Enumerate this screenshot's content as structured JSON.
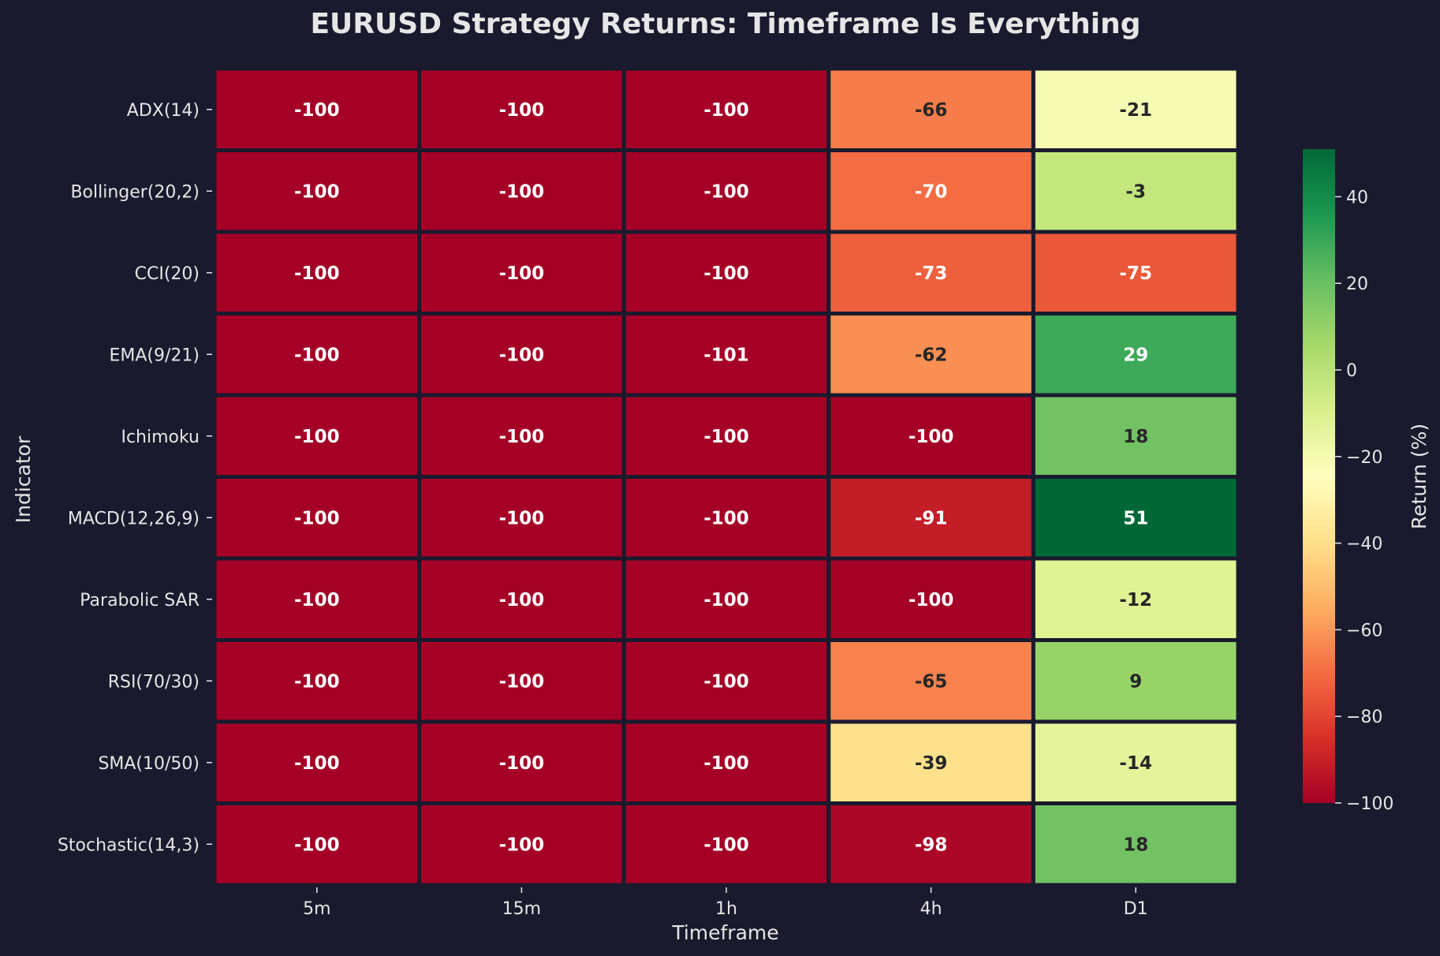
{
  "chart_data": {
    "type": "heatmap",
    "title": "EURUSD Strategy Returns: Timeframe Is Everything",
    "xlabel": "Timeframe",
    "ylabel": "Indicator",
    "x_categories": [
      "5m",
      "15m",
      "1h",
      "4h",
      "D1"
    ],
    "y_categories": [
      "ADX(14)",
      "Bollinger(20,2)",
      "CCI(20)",
      "EMA(9/21)",
      "Ichimoku",
      "MACD(12,26,9)",
      "Parabolic SAR",
      "RSI(70/30)",
      "SMA(10/50)",
      "Stochastic(14,3)"
    ],
    "values": [
      [
        -100,
        -100,
        -100,
        -66,
        -21
      ],
      [
        -100,
        -100,
        -100,
        -70,
        -3
      ],
      [
        -100,
        -100,
        -100,
        -73,
        -75
      ],
      [
        -100,
        -100,
        -101,
        -62,
        29
      ],
      [
        -100,
        -100,
        -100,
        -100,
        18
      ],
      [
        -100,
        -100,
        -100,
        -91,
        51
      ],
      [
        -100,
        -100,
        -100,
        -100,
        -12
      ],
      [
        -100,
        -100,
        -100,
        -65,
        9
      ],
      [
        -100,
        -100,
        -100,
        -39,
        -14
      ],
      [
        -100,
        -100,
        -100,
        -98,
        18
      ]
    ],
    "colorbar": {
      "label": "Return (%)",
      "range": [
        -100,
        51
      ],
      "ticks": [
        40,
        20,
        0,
        -20,
        -40,
        -60,
        -80,
        -100
      ],
      "tick_labels": [
        "40",
        "20",
        "0",
        "−20",
        "−40",
        "−60",
        "−80",
        "−100"
      ],
      "colormap": "RdYlGn"
    },
    "colors": {
      "background": "#1a1a2e",
      "text": "#e6e6e6",
      "cell_border": "#1a1a2e",
      "dark_label": "#262626",
      "light_label": "#ffffff"
    }
  }
}
